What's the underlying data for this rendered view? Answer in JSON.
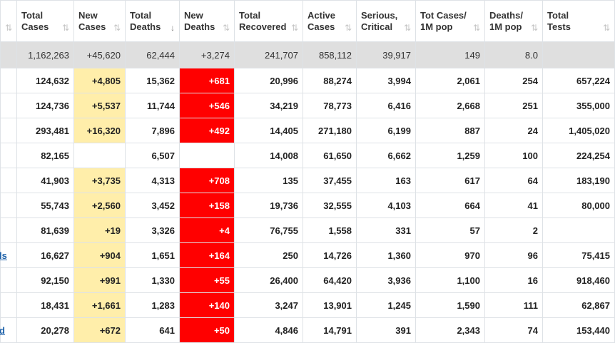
{
  "headers": [
    {
      "line1": "",
      "line2": "",
      "sort": "⇅"
    },
    {
      "line1": "Total",
      "line2": "Cases",
      "sort": "⇅"
    },
    {
      "line1": "New",
      "line2": "Cases",
      "sort": "⇅"
    },
    {
      "line1": "Total",
      "line2": "Deaths",
      "sort": "↓"
    },
    {
      "line1": "New",
      "line2": "Deaths",
      "sort": "⇅"
    },
    {
      "line1": "Total",
      "line2": "Recovered",
      "sort": "⇅"
    },
    {
      "line1": "Active",
      "line2": "Cases",
      "sort": "⇅"
    },
    {
      "line1": "Serious,",
      "line2": "Critical",
      "sort": "⇅"
    },
    {
      "line1": "Tot Cases/",
      "line2": "1M pop",
      "sort": "⇅"
    },
    {
      "line1": "Deaths/",
      "line2": "1M pop",
      "sort": "⇅"
    },
    {
      "line1": "Total",
      "line2": "Tests",
      "sort": "⇅"
    }
  ],
  "total_row": {
    "total_cases": "1,162,263",
    "new_cases": "+45,620",
    "total_deaths": "62,444",
    "new_deaths": "+3,274",
    "total_recovered": "241,707",
    "active_cases": "858,112",
    "serious": "39,917",
    "cases_per_1m": "149",
    "deaths_per_1m": "8.0",
    "total_tests": ""
  },
  "rows": [
    {
      "country": "",
      "total_cases": "124,632",
      "new_cases": "+4,805",
      "total_deaths": "15,362",
      "new_deaths": "+681",
      "total_recovered": "20,996",
      "active_cases": "88,274",
      "serious": "3,994",
      "cases_per_1m": "2,061",
      "deaths_per_1m": "254",
      "total_tests": "657,224"
    },
    {
      "country": "",
      "total_cases": "124,736",
      "new_cases": "+5,537",
      "total_deaths": "11,744",
      "new_deaths": "+546",
      "total_recovered": "34,219",
      "active_cases": "78,773",
      "serious": "6,416",
      "cases_per_1m": "2,668",
      "deaths_per_1m": "251",
      "total_tests": "355,000"
    },
    {
      "country": "",
      "total_cases": "293,481",
      "new_cases": "+16,320",
      "total_deaths": "7,896",
      "new_deaths": "+492",
      "total_recovered": "14,405",
      "active_cases": "271,180",
      "serious": "6,199",
      "cases_per_1m": "887",
      "deaths_per_1m": "24",
      "total_tests": "1,405,020"
    },
    {
      "country": "",
      "total_cases": "82,165",
      "new_cases": "",
      "total_deaths": "6,507",
      "new_deaths": "",
      "total_recovered": "14,008",
      "active_cases": "61,650",
      "serious": "6,662",
      "cases_per_1m": "1,259",
      "deaths_per_1m": "100",
      "total_tests": "224,254"
    },
    {
      "country": "",
      "total_cases": "41,903",
      "new_cases": "+3,735",
      "total_deaths": "4,313",
      "new_deaths": "+708",
      "total_recovered": "135",
      "active_cases": "37,455",
      "serious": "163",
      "cases_per_1m": "617",
      "deaths_per_1m": "64",
      "total_tests": "183,190"
    },
    {
      "country": "",
      "total_cases": "55,743",
      "new_cases": "+2,560",
      "total_deaths": "3,452",
      "new_deaths": "+158",
      "total_recovered": "19,736",
      "active_cases": "32,555",
      "serious": "4,103",
      "cases_per_1m": "664",
      "deaths_per_1m": "41",
      "total_tests": "80,000"
    },
    {
      "country": "",
      "total_cases": "81,639",
      "new_cases": "+19",
      "total_deaths": "3,326",
      "new_deaths": "+4",
      "total_recovered": "76,755",
      "active_cases": "1,558",
      "serious": "331",
      "cases_per_1m": "57",
      "deaths_per_1m": "2",
      "total_tests": ""
    },
    {
      "country": "ls",
      "total_cases": "16,627",
      "new_cases": "+904",
      "total_deaths": "1,651",
      "new_deaths": "+164",
      "total_recovered": "250",
      "active_cases": "14,726",
      "serious": "1,360",
      "cases_per_1m": "970",
      "deaths_per_1m": "96",
      "total_tests": "75,415"
    },
    {
      "country": "",
      "total_cases": "92,150",
      "new_cases": "+991",
      "total_deaths": "1,330",
      "new_deaths": "+55",
      "total_recovered": "26,400",
      "active_cases": "64,420",
      "serious": "3,936",
      "cases_per_1m": "1,100",
      "deaths_per_1m": "16",
      "total_tests": "918,460"
    },
    {
      "country": "",
      "total_cases": "18,431",
      "new_cases": "+1,661",
      "total_deaths": "1,283",
      "new_deaths": "+140",
      "total_recovered": "3,247",
      "active_cases": "13,901",
      "serious": "1,245",
      "cases_per_1m": "1,590",
      "deaths_per_1m": "111",
      "total_tests": "62,867"
    },
    {
      "country": "d",
      "total_cases": "20,278",
      "new_cases": "+672",
      "total_deaths": "641",
      "new_deaths": "+50",
      "total_recovered": "4,846",
      "active_cases": "14,791",
      "serious": "391",
      "cases_per_1m": "2,343",
      "deaths_per_1m": "74",
      "total_tests": "153,440"
    }
  ],
  "colors": {
    "new_cases_bg": "#ffeeaa",
    "new_deaths_bg": "#ff0000",
    "total_row_bg": "#dfdfdf",
    "link": "#1a5fa8"
  }
}
